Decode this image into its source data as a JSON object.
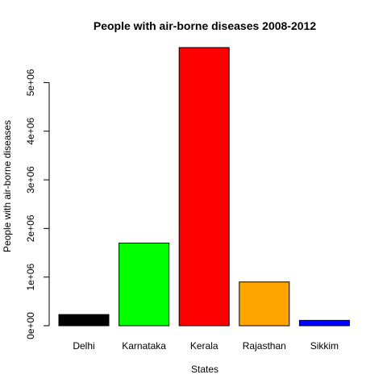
{
  "chart_data": {
    "type": "bar",
    "title": "People with air-borne diseases 2008-2012",
    "xlabel": "States",
    "ylabel": "People with air-borne diseases",
    "categories": [
      "Delhi",
      "Karnataka",
      "Kerala",
      "Rajasthan",
      "Sikkim"
    ],
    "values": [
      230000,
      1700000,
      5720000,
      900000,
      110000
    ],
    "colors": [
      "#000000",
      "#00ff00",
      "#ff0000",
      "#ffa500",
      "#0000ff"
    ],
    "ylim": [
      0,
      5720000
    ],
    "yticks": [
      0,
      1000000,
      2000000,
      3000000,
      4000000,
      5000000
    ],
    "ytick_labels": [
      "0e+00",
      "1e+06",
      "2e+06",
      "3e+06",
      "4e+06",
      "5e+06"
    ],
    "grid": false,
    "legend": "none"
  }
}
